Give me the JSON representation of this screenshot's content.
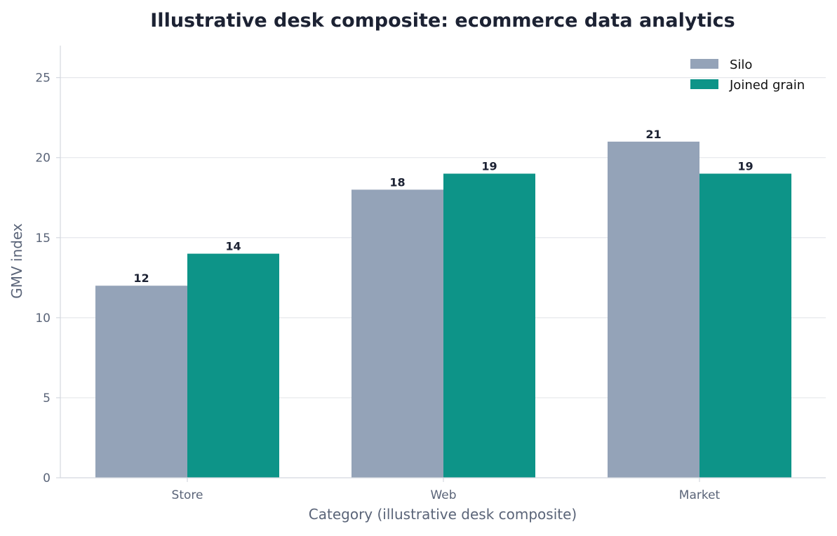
{
  "chart_data": {
    "type": "bar",
    "title": "Illustrative desk composite: ecommerce data analytics",
    "xlabel": "Category (illustrative desk composite)",
    "ylabel": "GMV index",
    "categories": [
      "Store",
      "Web",
      "Market"
    ],
    "series": [
      {
        "name": "Silo",
        "values": [
          12,
          18,
          21
        ],
        "color": "#94a3b8"
      },
      {
        "name": "Joined grain",
        "values": [
          14,
          19,
          19
        ],
        "color": "#0d9488"
      }
    ],
    "ylim": [
      0,
      27
    ],
    "yticks": [
      0,
      5,
      10,
      15,
      20,
      25
    ],
    "grid": "horizontal",
    "legend_position": "top-right",
    "data_labels": true
  },
  "colors": {
    "grid": "#e5e7eb",
    "axis": "#d4d8df",
    "title": "#1c2233",
    "axis_text": "#5a6478"
  }
}
